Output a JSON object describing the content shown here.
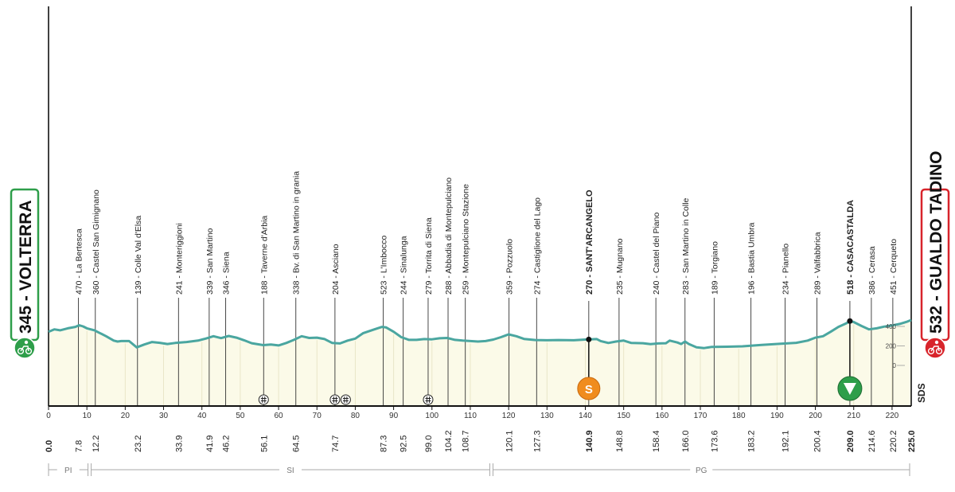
{
  "chart_data": {
    "type": "area",
    "title": "",
    "xlabel": "",
    "ylabel": "",
    "xlim": [
      0,
      225
    ],
    "ylim": [
      0,
      550
    ],
    "x_ticks": [
      0,
      10,
      20,
      30,
      40,
      50,
      60,
      70,
      80,
      90,
      100,
      110,
      120,
      130,
      140,
      150,
      160,
      170,
      180,
      190,
      200,
      210,
      220
    ],
    "elevation_ticks": [
      {
        "value": 0,
        "label": "0"
      },
      {
        "value": 200,
        "label": "200"
      },
      {
        "value": 400,
        "label": "400"
      }
    ],
    "profile": [
      [
        0,
        345
      ],
      [
        1.5,
        370
      ],
      [
        3,
        360
      ],
      [
        5,
        380
      ],
      [
        7,
        395
      ],
      [
        8,
        412
      ],
      [
        9,
        400
      ],
      [
        10,
        380
      ],
      [
        12,
        360
      ],
      [
        13,
        340
      ],
      [
        15,
        300
      ],
      [
        17,
        255
      ],
      [
        18,
        245
      ],
      [
        19,
        250
      ],
      [
        21,
        250
      ],
      [
        23,
        185
      ],
      [
        25,
        215
      ],
      [
        27,
        240
      ],
      [
        29,
        232
      ],
      [
        31,
        220
      ],
      [
        33,
        230
      ],
      [
        36,
        240
      ],
      [
        39,
        255
      ],
      [
        41,
        275
      ],
      [
        43,
        300
      ],
      [
        45,
        280
      ],
      [
        47,
        302
      ],
      [
        49,
        285
      ],
      [
        51,
        258
      ],
      [
        53,
        228
      ],
      [
        56,
        208
      ],
      [
        58,
        215
      ],
      [
        60,
        205
      ],
      [
        62,
        230
      ],
      [
        64,
        262
      ],
      [
        66,
        300
      ],
      [
        68,
        282
      ],
      [
        70,
        285
      ],
      [
        72,
        270
      ],
      [
        74,
        230
      ],
      [
        76,
        225
      ],
      [
        78,
        255
      ],
      [
        80,
        275
      ],
      [
        82,
        330
      ],
      [
        85,
        370
      ],
      [
        87,
        395
      ],
      [
        88,
        390
      ],
      [
        90,
        345
      ],
      [
        92,
        290
      ],
      [
        94,
        262
      ],
      [
        96,
        262
      ],
      [
        98,
        270
      ],
      [
        100,
        268
      ],
      [
        102,
        278
      ],
      [
        104,
        282
      ],
      [
        106,
        262
      ],
      [
        108,
        255
      ],
      [
        110,
        250
      ],
      [
        112,
        245
      ],
      [
        114,
        250
      ],
      [
        116,
        265
      ],
      [
        118,
        290
      ],
      [
        120,
        318
      ],
      [
        122,
        300
      ],
      [
        124,
        272
      ],
      [
        127,
        260
      ],
      [
        130,
        258
      ],
      [
        133,
        260
      ],
      [
        137,
        258
      ],
      [
        140,
        265
      ],
      [
        143,
        270
      ],
      [
        144,
        250
      ],
      [
        146,
        230
      ],
      [
        148,
        245
      ],
      [
        150,
        255
      ],
      [
        152,
        230
      ],
      [
        155,
        228
      ],
      [
        157,
        218
      ],
      [
        159,
        225
      ],
      [
        161,
        228
      ],
      [
        162,
        255
      ],
      [
        164,
        235
      ],
      [
        165,
        220
      ],
      [
        166,
        245
      ],
      [
        167,
        220
      ],
      [
        169,
        185
      ],
      [
        171,
        178
      ],
      [
        173,
        190
      ],
      [
        177,
        192
      ],
      [
        181,
        196
      ],
      [
        186,
        210
      ],
      [
        191,
        222
      ],
      [
        195,
        232
      ],
      [
        198,
        255
      ],
      [
        200,
        285
      ],
      [
        202,
        300
      ],
      [
        204,
        345
      ],
      [
        206,
        395
      ],
      [
        208,
        430
      ],
      [
        209,
        455
      ],
      [
        210,
        445
      ],
      [
        212,
        405
      ],
      [
        214,
        370
      ],
      [
        216,
        380
      ],
      [
        218,
        398
      ],
      [
        220,
        410
      ],
      [
        222,
        425
      ],
      [
        224,
        450
      ],
      [
        225,
        465
      ]
    ],
    "top_labels": [
      {
        "km": 7.8,
        "text": "470 - La Bertesca"
      },
      {
        "km": 12.2,
        "text": "360 - Castel San Gimignano"
      },
      {
        "km": 23.2,
        "text": "139 - Colle Val d'Elsa"
      },
      {
        "km": 33.9,
        "text": "241 - Monteriggioni"
      },
      {
        "km": 41.9,
        "text": "339 - San Martino"
      },
      {
        "km": 46.2,
        "text": "346 - Siena"
      },
      {
        "km": 56.1,
        "text": "188 - Taverne d'Arbia"
      },
      {
        "km": 64.5,
        "text": "338 - Bv. di San Martino in grania"
      },
      {
        "km": 74.7,
        "text": "204 - Asciano"
      },
      {
        "km": 87.3,
        "text": "523 - L'Imbocco"
      },
      {
        "km": 92.5,
        "text": "244 - Sinalunga"
      },
      {
        "km": 99.0,
        "text": "279 - Torrita di Siena"
      },
      {
        "km": 104.2,
        "text": "288 - Abbadia di Montepulciano"
      },
      {
        "km": 108.7,
        "text": "259 - Montepulciano Stazione"
      },
      {
        "km": 120.1,
        "text": "359 - Pozzuolo"
      },
      {
        "km": 127.3,
        "text": "274 - Castiglione del Lago"
      },
      {
        "km": 140.9,
        "text": "270 - SANT'ARCANGELO",
        "bold": true
      },
      {
        "km": 148.8,
        "text": "235 - Mugnano"
      },
      {
        "km": 158.4,
        "text": "240 - Castel del Piano"
      },
      {
        "km": 166.0,
        "text": "283 - San Martino in Colle"
      },
      {
        "km": 173.6,
        "text": "189 - Torgiano"
      },
      {
        "km": 183.2,
        "text": "196 - Bastia Umbra"
      },
      {
        "km": 192.1,
        "text": "234 - Pianello"
      },
      {
        "km": 200.4,
        "text": "289 - Valfabbrica"
      },
      {
        "km": 209.0,
        "text": "518 - CASACASTALDA",
        "bold": true
      },
      {
        "km": 214.6,
        "text": "386 - Cerasa"
      },
      {
        "km": 220.2,
        "text": "451 - Cerqueto"
      }
    ],
    "bottom_labels": [
      {
        "km": 0.0,
        "text": "0.0",
        "bold": true
      },
      {
        "km": 7.8,
        "text": "7.8"
      },
      {
        "km": 12.2,
        "text": "12.2"
      },
      {
        "km": 23.2,
        "text": "23.2"
      },
      {
        "km": 33.9,
        "text": "33.9"
      },
      {
        "km": 41.9,
        "text": "41.9"
      },
      {
        "km": 46.2,
        "text": "46.2"
      },
      {
        "km": 56.1,
        "text": "56.1"
      },
      {
        "km": 64.5,
        "text": "64.5"
      },
      {
        "km": 74.7,
        "text": "74.7"
      },
      {
        "km": 87.3,
        "text": "87.3"
      },
      {
        "km": 92.5,
        "text": "92.5"
      },
      {
        "km": 99.0,
        "text": "99.0"
      },
      {
        "km": 104.2,
        "text": "104.2"
      },
      {
        "km": 108.7,
        "text": "108.7"
      },
      {
        "km": 120.1,
        "text": "120.1"
      },
      {
        "km": 127.3,
        "text": "127.3"
      },
      {
        "km": 140.9,
        "text": "140.9",
        "bold": true
      },
      {
        "km": 148.8,
        "text": "148.8"
      },
      {
        "km": 158.4,
        "text": "158.4"
      },
      {
        "km": 166.0,
        "text": "166.0"
      },
      {
        "km": 173.6,
        "text": "173.6"
      },
      {
        "km": 183.2,
        "text": "183.2"
      },
      {
        "km": 192.1,
        "text": "192.1"
      },
      {
        "km": 200.4,
        "text": "200.4"
      },
      {
        "km": 209.0,
        "text": "209.0",
        "bold": true
      },
      {
        "km": 214.6,
        "text": "214.6"
      },
      {
        "km": 220.2,
        "text": "220.2"
      },
      {
        "km": 225.0,
        "text": "225.0",
        "bold": true
      }
    ],
    "start": {
      "km": 0,
      "label": "345 - VOLTERRA",
      "color": "#2e9e4a"
    },
    "finish": {
      "km": 225,
      "label": "532 - GUALDO TADINO",
      "color": "#d8242b"
    },
    "sprint": {
      "km": 140.9,
      "symbol": "S",
      "color": "#f08c1e"
    },
    "kom": {
      "km": 209.0,
      "color": "#2e9e4a"
    },
    "level_crossings_km": [
      56.1,
      74.7,
      77.5,
      99.0
    ],
    "provinces": [
      {
        "label": "PI",
        "from": 0,
        "to": 10.7
      },
      {
        "label": "SI",
        "from": 10.7,
        "to": 115.5
      },
      {
        "label": "PG",
        "from": 115.5,
        "to": 225
      }
    ],
    "sds_label": "SDS",
    "colors": {
      "profile_line": "#4aa6a0",
      "profile_fill": "#fbfae8",
      "axis": "#111111",
      "guides": "#333333"
    }
  }
}
